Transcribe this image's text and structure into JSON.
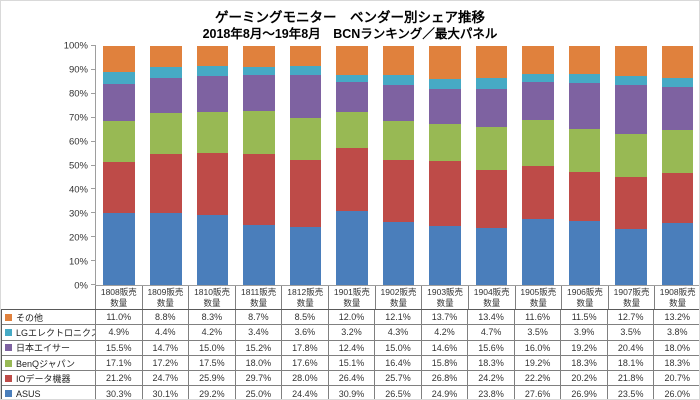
{
  "title": "ゲーミングモニター　ベンダー別シェア推移",
  "subtitle": "2018年8月～19年8月　BCNランキング／最大パネル",
  "chart_data": {
    "type": "bar",
    "variant": "100%-stacked-column-with-data-table",
    "title": "ゲーミングモニター　ベンダー別シェア推移",
    "subtitle": "2018年8月～19年8月　BCNランキング／最大パネル",
    "categories": [
      "1808販売数量",
      "1809販売数量",
      "1810販売数量",
      "1811販売数量",
      "1812販売数量",
      "1901販売数量",
      "1902販売数量",
      "1903販売数量",
      "1904販売数量",
      "1905販売数量",
      "1906販売数量",
      "1907販売数量",
      "1908販売数量"
    ],
    "series": [
      {
        "name": "その他",
        "color": "#E0813D",
        "values": [
          11.0,
          8.8,
          8.3,
          8.7,
          8.5,
          12.0,
          12.1,
          13.7,
          13.4,
          11.6,
          11.5,
          12.7,
          13.2
        ]
      },
      {
        "name": "LGエレクトロニクス",
        "color": "#46AAC5",
        "values": [
          4.9,
          4.4,
          4.2,
          3.4,
          3.6,
          3.2,
          4.3,
          4.2,
          4.7,
          3.5,
          3.9,
          3.5,
          3.8
        ]
      },
      {
        "name": "日本エイサー",
        "color": "#7E62A1",
        "values": [
          15.5,
          14.7,
          15.0,
          15.2,
          17.8,
          12.4,
          15.0,
          14.6,
          15.6,
          16.0,
          19.2,
          20.4,
          18.0
        ]
      },
      {
        "name": "BenQジャパン",
        "color": "#98B954",
        "values": [
          17.1,
          17.2,
          17.5,
          18.0,
          17.6,
          15.1,
          16.4,
          15.8,
          18.3,
          19.2,
          18.3,
          18.1,
          18.3
        ]
      },
      {
        "name": "IOデータ機器",
        "color": "#BE4B48",
        "values": [
          21.2,
          24.7,
          25.9,
          29.7,
          28.0,
          26.4,
          25.7,
          26.8,
          24.2,
          22.2,
          20.2,
          21.8,
          20.7
        ]
      },
      {
        "name": "ASUS",
        "color": "#4A7EBB",
        "values": [
          30.3,
          30.1,
          29.2,
          25.0,
          24.4,
          30.9,
          26.5,
          24.9,
          23.8,
          27.6,
          26.9,
          23.5,
          26.0
        ]
      }
    ],
    "stack_order_bottom_to_top": [
      "ASUS",
      "IOデータ機器",
      "BenQジャパン",
      "日本エイサー",
      "LGエレクトロニクス",
      "その他"
    ],
    "ylabel": "",
    "xlabel": "",
    "ylim": [
      0,
      100
    ],
    "y_tick_labels": [
      "0%",
      "10%",
      "20%",
      "30%",
      "40%",
      "50%",
      "60%",
      "70%",
      "80%",
      "90%",
      "100%"
    ],
    "value_suffix": "%",
    "grid": false,
    "legend_position": "data-table-left-column"
  }
}
